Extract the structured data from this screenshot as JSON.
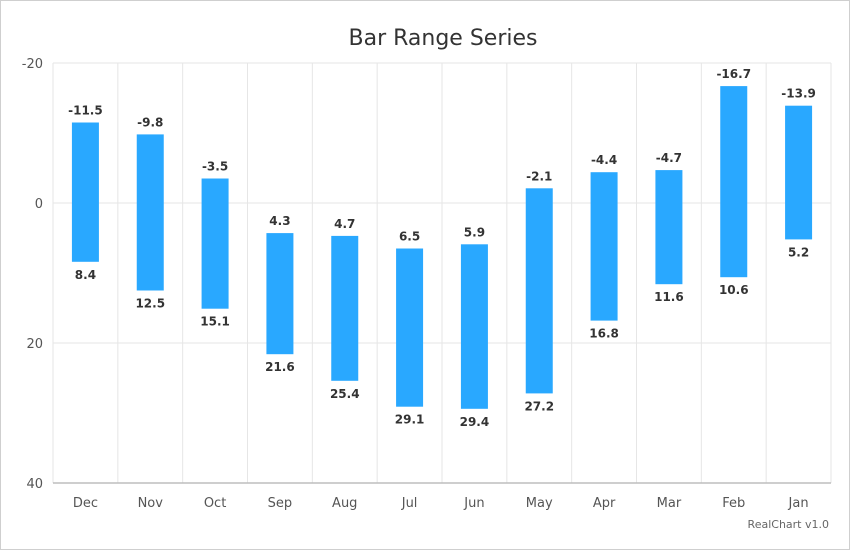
{
  "chart_data": {
    "type": "bar",
    "subtype": "range",
    "title": "Bar Range Series",
    "categories": [
      "Dec",
      "Nov",
      "Oct",
      "Sep",
      "Aug",
      "Jul",
      "Jun",
      "May",
      "Apr",
      "Mar",
      "Feb",
      "Jan"
    ],
    "series": [
      {
        "low": [
          -11.5,
          -9.8,
          -3.5,
          4.3,
          4.7,
          6.5,
          5.9,
          -2.1,
          -4.4,
          -4.7,
          -16.7,
          -13.9
        ],
        "high": [
          8.4,
          12.5,
          15.1,
          21.6,
          25.4,
          29.1,
          29.4,
          27.2,
          16.8,
          11.6,
          10.6,
          5.2
        ],
        "color": "#29a8ff"
      }
    ],
    "ylim": [
      -20,
      40
    ],
    "y_reversed": true,
    "y_ticks": [
      "-20",
      "0",
      "20",
      "40"
    ],
    "grid": true,
    "xlabel": "",
    "ylabel": ""
  },
  "credit": "RealChart v1.0",
  "colors": {
    "bar": "#29a8ff",
    "grid": "#e6e6e6",
    "axis": "#bdbdbd",
    "text": "#333333"
  }
}
